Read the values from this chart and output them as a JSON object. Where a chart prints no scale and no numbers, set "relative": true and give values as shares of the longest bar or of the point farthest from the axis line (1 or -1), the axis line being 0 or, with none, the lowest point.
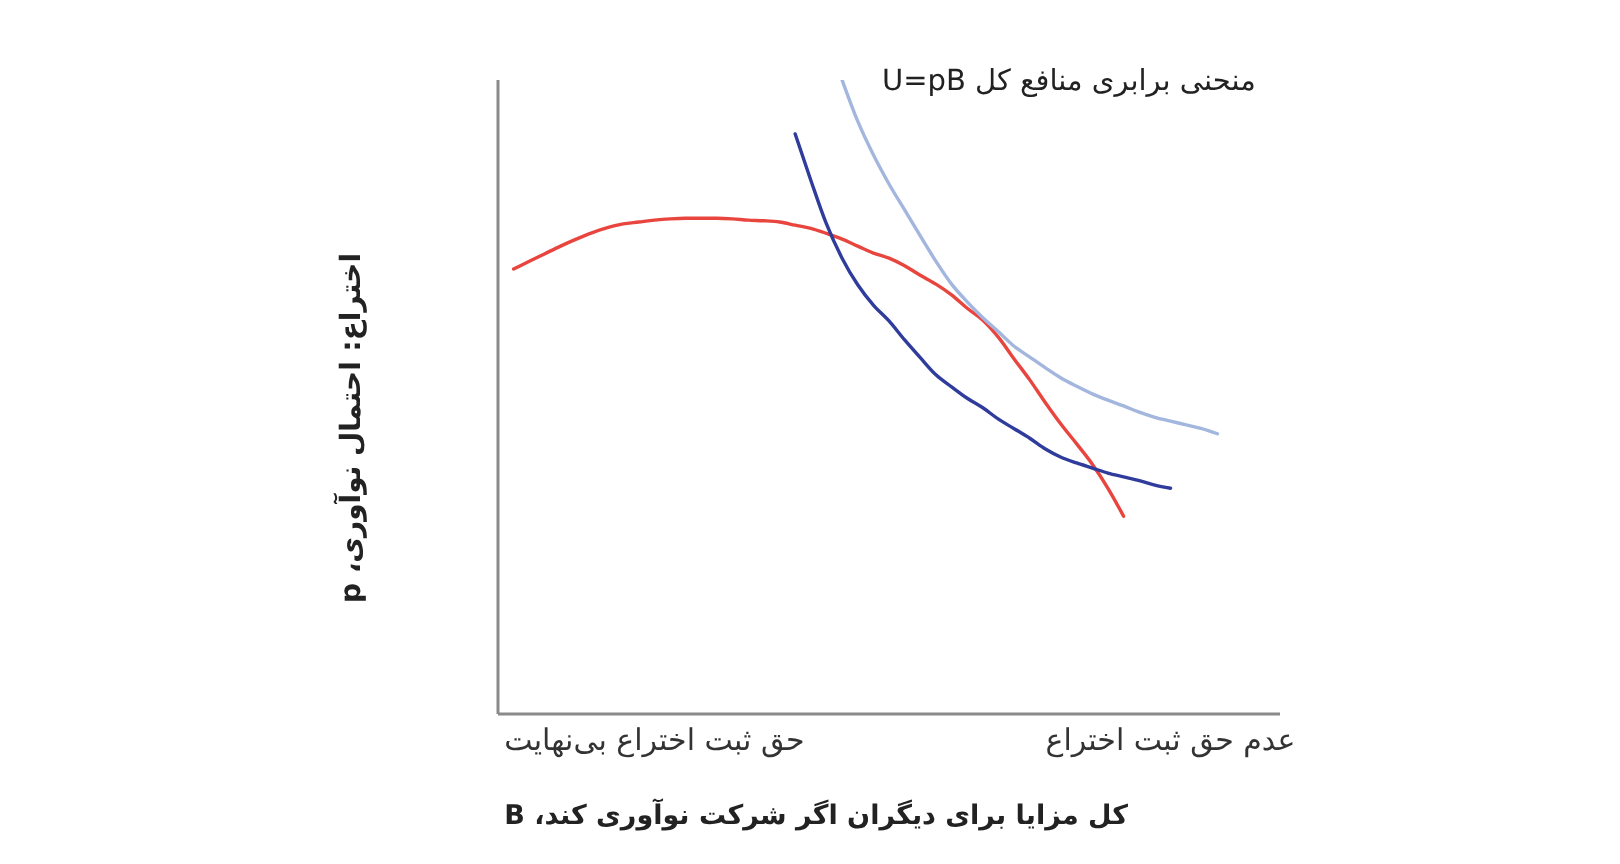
{
  "chart_data": {
    "type": "line",
    "xlabel": "کل مزایا برای دیگران اگر شرکت نوآوری کند، B",
    "ylabel": "اختراع: احتمال نوآوری، p",
    "relative": true,
    "categories": [
      null,
      null,
      null,
      null,
      null,
      null,
      null,
      null,
      null,
      null,
      "حق ثبت اختراع بی‌نهایت",
      null,
      null,
      null,
      null,
      null,
      null,
      null,
      null,
      null,
      null,
      null,
      null,
      null,
      null,
      null,
      null,
      null,
      null,
      null,
      null,
      null,
      null,
      null,
      null,
      null,
      null,
      null,
      null,
      null,
      null,
      null,
      null,
      "عدم حق ثبت اختراع",
      null,
      null,
      null,
      null,
      null,
      null,
      null
    ],
    "series": [
      {
        "color": "#e8453f",
        "values": [
          null,
          0.702,
          0.714,
          0.726,
          0.738,
          0.749,
          0.759,
          0.767,
          0.773,
          0.776,
          0.779,
          0.781,
          0.782,
          0.782,
          0.782,
          0.781,
          0.779,
          0.778,
          0.776,
          0.771,
          0.766,
          0.758,
          0.749,
          0.738,
          0.727,
          0.719,
          0.707,
          0.692,
          0.678,
          0.661,
          0.64,
          0.621,
          0.594,
          0.56,
          0.527,
          0.491,
          0.457,
          0.426,
          0.394,
          0.356,
          0.312,
          null,
          null,
          null,
          null,
          null,
          null,
          null,
          null,
          null,
          null
        ]
      },
      {
        "color": "#2f3c9c",
        "values": [
          null,
          null,
          null,
          null,
          null,
          null,
          null,
          null,
          null,
          null,
          null,
          null,
          null,
          null,
          null,
          null,
          null,
          null,
          null,
          0.915,
          0.842,
          0.773,
          0.719,
          0.677,
          0.645,
          0.62,
          0.59,
          0.562,
          0.535,
          0.516,
          0.498,
          0.483,
          0.465,
          0.45,
          0.435,
          0.418,
          0.405,
          0.396,
          0.388,
          0.38,
          0.374,
          0.368,
          0.361,
          0.356,
          null,
          null,
          null,
          null,
          null,
          null,
          null
        ]
      },
      {
        "name": "منحنی برابری منافع کل U=pB",
        "color": "#a3b6de",
        "values": [
          null,
          null,
          null,
          null,
          null,
          null,
          null,
          null,
          null,
          null,
          null,
          null,
          null,
          null,
          null,
          null,
          null,
          null,
          null,
          null,
          null,
          null,
          1.0,
          0.935,
          0.882,
          0.836,
          0.795,
          0.754,
          0.714,
          0.678,
          0.65,
          0.625,
          0.603,
          0.58,
          0.563,
          0.546,
          0.53,
          0.517,
          0.505,
          0.495,
          0.486,
          0.476,
          0.468,
          0.462,
          0.456,
          0.45,
          0.442,
          null,
          null,
          null,
          null
        ]
      }
    ]
  }
}
